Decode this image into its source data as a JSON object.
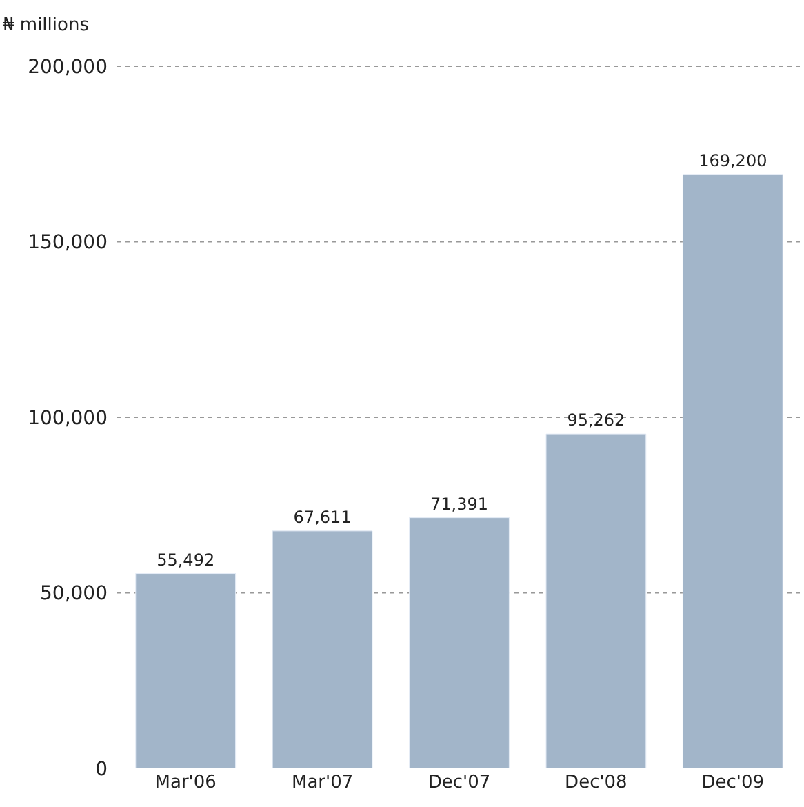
{
  "chart_data": {
    "type": "bar",
    "ylabel": "₦ millions",
    "categories": [
      "Mar'06",
      "Mar'07",
      "Dec'07",
      "Dec'08",
      "Dec'09"
    ],
    "values": [
      55492,
      67611,
      71391,
      95262,
      169200
    ],
    "color": "#a2b5c9",
    "ylim": [
      0,
      200000
    ],
    "yticks": [
      {
        "value": 0,
        "label": "0"
      },
      {
        "value": 50000,
        "label": "50,000"
      },
      {
        "value": 100000,
        "label": "100,000"
      },
      {
        "value": 150000,
        "label": "150,000"
      },
      {
        "value": 200000,
        "label": "200,000"
      }
    ],
    "value_labels": [
      "55,492",
      "67,611",
      "71,391",
      "95,262",
      "169,200"
    ],
    "grid": "y",
    "legend": false
  }
}
